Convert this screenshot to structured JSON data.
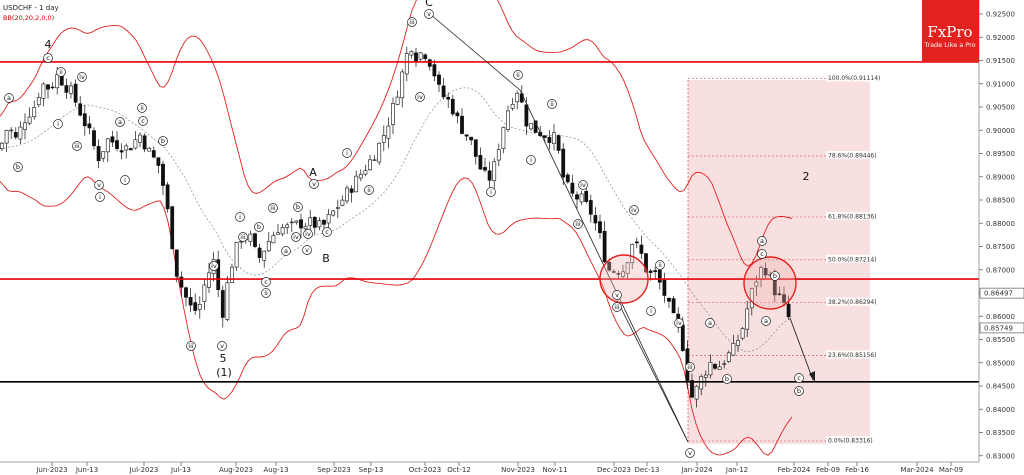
{
  "header": {
    "symbol_label": "USDCHF - 1 day",
    "indicator_label": "BB(20,20,2,0,0)"
  },
  "logo": {
    "brand": "FxPro",
    "tagline": "Trade Like a Pro",
    "color": "#e3211e"
  },
  "colors": {
    "bull": "#ffffff",
    "bear": "#111111",
    "band": "#e02020",
    "mid": "#8a8a8a",
    "level": "#e8000a",
    "support": "#000000",
    "fib_zone": "#f4c7c7",
    "fib_line": "#d46060"
  },
  "chart_data": {
    "type": "candlestick",
    "title": "USDCHF - 1 day",
    "indicator": "BB(20,20,2,0,0)",
    "ylim": [
      0.83,
      0.9275
    ],
    "y_ticks": [
      "0.92500",
      "0.92000",
      "0.91500",
      "0.91000",
      "0.90500",
      "0.90000",
      "0.89500",
      "0.89000",
      "0.88500",
      "0.88000",
      "0.87500",
      "0.87000",
      "0.86500",
      "0.86000",
      "0.85500",
      "0.85000",
      "0.84500",
      "0.84000",
      "0.83500",
      "0.83000"
    ],
    "x_ticks": [
      "Jun-2023",
      "Jun-13",
      "Jul-2023",
      "Jul-13",
      "Aug-2023",
      "Aug-13",
      "Sep-2023",
      "Sep-13",
      "Oct-2023",
      "Oct-12",
      "Nov-2023",
      "Nov-11",
      "Dec-2023",
      "Dec-13",
      "Jan-2024",
      "Jan-12",
      "Feb-2024",
      "Feb-09",
      "Feb-16",
      "Mar-2024",
      "Mar-09"
    ],
    "price_labels": [
      {
        "value": 0.86497,
        "text": "0.86497",
        "bg": "#ffffff",
        "fg": "#000000"
      },
      {
        "value": 0.85749,
        "text": "0.85749",
        "bg": "#ffffff",
        "fg": "#000000"
      }
    ],
    "horizontal_levels": [
      {
        "value": 0.9147,
        "role": "resistance"
      },
      {
        "value": 0.868,
        "role": "resistance"
      },
      {
        "value": 0.8459,
        "role": "support"
      }
    ],
    "fibonacci": {
      "levels": [
        {
          "pct": "100.0%",
          "text": "100.0%(0.91114)",
          "value": 0.91114
        },
        {
          "pct": "78.6%",
          "text": "78.6%(0.89446)",
          "value": 0.89446
        },
        {
          "pct": "61.8%",
          "text": "61.8%(0.88136)",
          "value": 0.88136
        },
        {
          "pct": "50.0%",
          "text": "50.0%(0.87214)",
          "value": 0.87214
        },
        {
          "pct": "38.2%",
          "text": "38.2%(0.86294)",
          "value": 0.86294
        },
        {
          "pct": "23.6%",
          "text": "23.6%(0.85156)",
          "value": 0.85156
        },
        {
          "pct": "0.0%",
          "text": "0.0%(0.83316)",
          "value": 0.83316
        }
      ]
    },
    "wave_labels": [
      {
        "text": "4"
      },
      {
        "text": "5"
      },
      {
        "text": "(1)"
      },
      {
        "text": "A"
      },
      {
        "text": "B"
      },
      {
        "text": "C"
      },
      {
        "text": "2"
      },
      {
        "text": "a"
      },
      {
        "text": "b"
      },
      {
        "text": "c"
      },
      {
        "text": "i"
      },
      {
        "text": "ii"
      },
      {
        "text": "iii"
      },
      {
        "text": "iv"
      },
      {
        "text": "v"
      },
      {
        "text": "(a)"
      },
      {
        "text": "(b)"
      },
      {
        "text": "(c)"
      }
    ]
  }
}
